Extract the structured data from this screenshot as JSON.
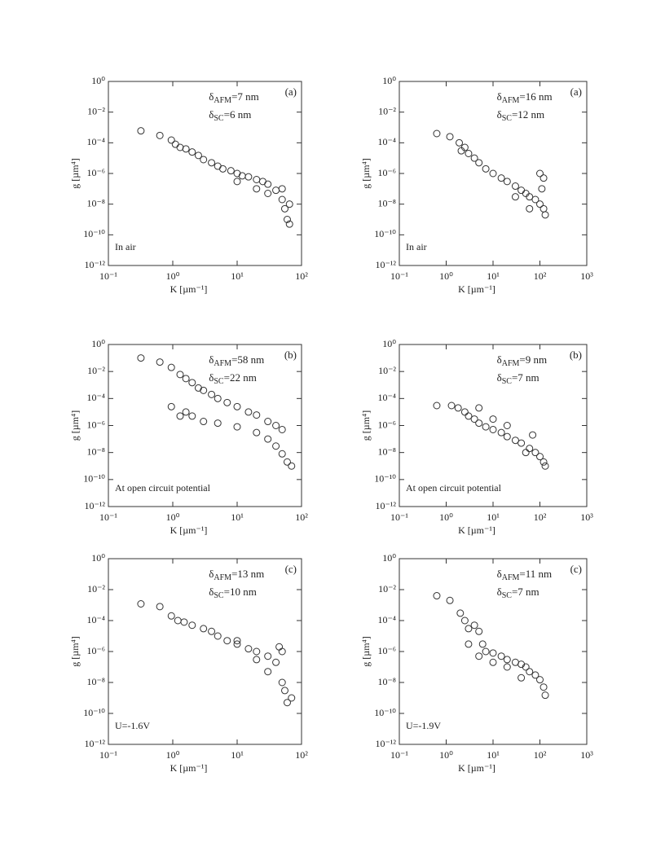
{
  "chart_data": [
    {
      "type": "scatter",
      "xscale": "log",
      "yscale": "log",
      "color": "#333333",
      "xlim": [
        0.1,
        100
      ],
      "ylim": [
        1e-12,
        1
      ],
      "xticks": [
        {
          "value": 0.1,
          "label": "10⁻¹"
        },
        {
          "value": 1,
          "label": "10⁰"
        },
        {
          "value": 10,
          "label": "10¹"
        },
        {
          "value": 100,
          "label": "10²"
        }
      ],
      "yticks": [
        {
          "value": 1,
          "label": "10⁰"
        },
        {
          "value": 0.01,
          "label": "10⁻²"
        },
        {
          "value": 0.0001,
          "label": "10⁻⁴"
        },
        {
          "value": 1e-06,
          "label": "10⁻⁶"
        },
        {
          "value": 1e-08,
          "label": "10⁻⁸"
        },
        {
          "value": 1e-10,
          "label": "10⁻¹⁰"
        },
        {
          "value": 1e-12,
          "label": "10⁻¹²"
        }
      ],
      "x_label": "K [µm⁻¹]",
      "y_label": "g [µm⁴]",
      "panel": "(a)",
      "note": "In air",
      "annotations": [
        {
          "base": "δ",
          "sub": "AFM",
          "rest": "=7 nm"
        },
        {
          "base": "δ",
          "sub": "SC",
          "rest": "=6 nm"
        }
      ],
      "x": [
        0.32,
        0.63,
        0.95,
        1.1,
        1.3,
        1.6,
        2,
        2.5,
        3,
        4,
        5,
        6,
        8,
        10,
        12,
        15,
        20,
        25,
        30,
        40,
        50,
        55,
        60,
        65,
        10,
        20,
        30,
        50,
        65
      ],
      "values": [
        0.0006,
        0.0003,
        0.00015,
        8e-05,
        5e-05,
        4e-05,
        2.5e-05,
        1.5e-05,
        8e-06,
        5e-06,
        3e-06,
        2e-06,
        1.5e-06,
        1e-06,
        7e-07,
        6e-07,
        4e-07,
        3e-07,
        2e-07,
        8e-08,
        2e-08,
        5e-09,
        1e-09,
        5e-10,
        3e-07,
        1e-07,
        5e-08,
        1e-07,
        1e-08
      ]
    },
    {
      "type": "scatter",
      "xscale": "log",
      "yscale": "log",
      "color": "#333333",
      "xlim": [
        0.1,
        1000
      ],
      "ylim": [
        1e-12,
        1
      ],
      "xticks": [
        {
          "value": 0.1,
          "label": "10⁻¹"
        },
        {
          "value": 1,
          "label": "10⁰"
        },
        {
          "value": 10,
          "label": "10¹"
        },
        {
          "value": 100,
          "label": "10²"
        },
        {
          "value": 1000,
          "label": "10³"
        }
      ],
      "yticks": [
        {
          "value": 1,
          "label": "10⁰"
        },
        {
          "value": 0.01,
          "label": "10⁻²"
        },
        {
          "value": 0.0001,
          "label": "10⁻⁴"
        },
        {
          "value": 1e-06,
          "label": "10⁻⁶"
        },
        {
          "value": 1e-08,
          "label": "10⁻⁸"
        },
        {
          "value": 1e-10,
          "label": "10⁻¹⁰"
        },
        {
          "value": 1e-12,
          "label": "10⁻¹²"
        }
      ],
      "x_label": "K [µm⁻¹]",
      "y_label": "g [µm⁴]",
      "panel": "(a)",
      "note": "In air",
      "annotations": [
        {
          "base": "δ",
          "sub": "AFM",
          "rest": "=16 nm"
        },
        {
          "base": "δ",
          "sub": "SC",
          "rest": "=12 nm"
        }
      ],
      "x": [
        0.63,
        1.2,
        1.9,
        2.1,
        2.5,
        3,
        4,
        5,
        7,
        10,
        15,
        20,
        30,
        40,
        50,
        60,
        80,
        100,
        120,
        130,
        100,
        120,
        30,
        60,
        110
      ],
      "values": [
        0.0004,
        0.00025,
        0.0001,
        3e-05,
        5e-05,
        2e-05,
        1e-05,
        5e-06,
        2e-06,
        1e-06,
        5e-07,
        3e-07,
        1.5e-07,
        8e-08,
        5e-08,
        3e-08,
        2e-08,
        1e-08,
        5e-09,
        2e-09,
        1e-06,
        5e-07,
        3e-08,
        5e-09,
        1e-07
      ]
    },
    {
      "type": "scatter",
      "xscale": "log",
      "yscale": "log",
      "color": "#333333",
      "xlim": [
        0.1,
        100
      ],
      "ylim": [
        1e-12,
        1
      ],
      "xticks": [
        {
          "value": 0.1,
          "label": "10⁻¹"
        },
        {
          "value": 1,
          "label": "10⁰"
        },
        {
          "value": 10,
          "label": "10¹"
        },
        {
          "value": 100,
          "label": "10²"
        }
      ],
      "yticks": [
        {
          "value": 1,
          "label": "10⁰"
        },
        {
          "value": 0.01,
          "label": "10⁻²"
        },
        {
          "value": 0.0001,
          "label": "10⁻⁴"
        },
        {
          "value": 1e-06,
          "label": "10⁻⁶"
        },
        {
          "value": 1e-08,
          "label": "10⁻⁸"
        },
        {
          "value": 1e-10,
          "label": "10⁻¹⁰"
        },
        {
          "value": 1e-12,
          "label": "10⁻¹²"
        }
      ],
      "x_label": "K [µm⁻¹]",
      "y_label": "g [µm⁴]",
      "panel": "(b)",
      "note": "At open circuit potential",
      "annotations": [
        {
          "base": "δ",
          "sub": "AFM",
          "rest": "=58 nm"
        },
        {
          "base": "δ",
          "sub": "SC",
          "rest": "=22 nm"
        }
      ],
      "x": [
        0.32,
        0.63,
        0.95,
        1.3,
        1.6,
        2,
        2.5,
        3,
        4,
        5,
        7,
        10,
        15,
        20,
        30,
        40,
        50,
        0.95,
        1.3,
        1.6,
        2,
        3,
        5,
        10,
        20,
        30,
        40,
        50,
        60,
        70
      ],
      "values": [
        0.1,
        0.05,
        0.02,
        0.006,
        0.003,
        0.0015,
        0.0006,
        0.0004,
        0.0002,
        0.0001,
        5e-05,
        2.5e-05,
        1e-05,
        6e-06,
        2e-06,
        1e-06,
        5e-07,
        2.5e-05,
        5e-06,
        1e-05,
        5e-06,
        2e-06,
        1.5e-06,
        8e-07,
        3e-07,
        1e-07,
        3e-08,
        8e-09,
        2e-09,
        1e-09
      ]
    },
    {
      "type": "scatter",
      "xscale": "log",
      "yscale": "log",
      "color": "#333333",
      "xlim": [
        0.1,
        1000
      ],
      "ylim": [
        1e-12,
        1
      ],
      "xticks": [
        {
          "value": 0.1,
          "label": "10⁻¹"
        },
        {
          "value": 1,
          "label": "10⁰"
        },
        {
          "value": 10,
          "label": "10¹"
        },
        {
          "value": 100,
          "label": "10²"
        },
        {
          "value": 1000,
          "label": "10³"
        }
      ],
      "yticks": [
        {
          "value": 1,
          "label": "10⁰"
        },
        {
          "value": 0.01,
          "label": "10⁻²"
        },
        {
          "value": 0.0001,
          "label": "10⁻⁴"
        },
        {
          "value": 1e-06,
          "label": "10⁻⁶"
        },
        {
          "value": 1e-08,
          "label": "10⁻⁸"
        },
        {
          "value": 1e-10,
          "label": "10⁻¹⁰"
        },
        {
          "value": 1e-12,
          "label": "10⁻¹²"
        }
      ],
      "x_label": "K [µm⁻¹]",
      "y_label": "g [µm⁴]",
      "panel": "(b)",
      "note": "At open circuit potential",
      "annotations": [
        {
          "base": "δ",
          "sub": "AFM",
          "rest": "=9 nm"
        },
        {
          "base": "δ",
          "sub": "SC",
          "rest": "=7 nm"
        }
      ],
      "x": [
        0.63,
        1.3,
        1.8,
        2.5,
        3,
        4,
        5,
        7,
        10,
        15,
        20,
        30,
        40,
        60,
        80,
        100,
        120,
        130,
        5,
        10,
        20,
        50,
        70
      ],
      "values": [
        3e-05,
        3e-05,
        2e-05,
        1e-05,
        5e-06,
        3e-06,
        1.5e-06,
        8e-07,
        5e-07,
        3e-07,
        1.5e-07,
        8e-08,
        5e-08,
        2e-08,
        1e-08,
        5e-09,
        2e-09,
        1e-09,
        2e-05,
        3e-06,
        1e-06,
        1e-08,
        2e-07
      ]
    },
    {
      "type": "scatter",
      "xscale": "log",
      "yscale": "log",
      "color": "#333333",
      "xlim": [
        0.1,
        100
      ],
      "ylim": [
        1e-12,
        1
      ],
      "xticks": [
        {
          "value": 0.1,
          "label": "10⁻¹"
        },
        {
          "value": 1,
          "label": "10⁰"
        },
        {
          "value": 10,
          "label": "10¹"
        },
        {
          "value": 100,
          "label": "10²"
        }
      ],
      "yticks": [
        {
          "value": 1,
          "label": "10⁰"
        },
        {
          "value": 0.01,
          "label": "10⁻²"
        },
        {
          "value": 0.0001,
          "label": "10⁻⁴"
        },
        {
          "value": 1e-06,
          "label": "10⁻⁶"
        },
        {
          "value": 1e-08,
          "label": "10⁻⁸"
        },
        {
          "value": 1e-10,
          "label": "10⁻¹⁰"
        },
        {
          "value": 1e-12,
          "label": "10⁻¹²"
        }
      ],
      "x_label": "K [µm⁻¹]",
      "y_label": "g [µm⁴]",
      "panel": "(c)",
      "note": "U=-1.6V",
      "annotations": [
        {
          "base": "δ",
          "sub": "AFM",
          "rest": "=13 nm"
        },
        {
          "base": "δ",
          "sub": "SC",
          "rest": "=10 nm"
        }
      ],
      "x": [
        0.32,
        0.63,
        0.95,
        1.2,
        1.5,
        2,
        3,
        4,
        5,
        7,
        10,
        15,
        20,
        30,
        40,
        50,
        50,
        55,
        60,
        70,
        30,
        20,
        10,
        45
      ],
      "values": [
        0.0012,
        0.0008,
        0.0002,
        0.0001,
        8e-05,
        5e-05,
        3e-05,
        2e-05,
        1e-05,
        5e-06,
        3e-06,
        1.5e-06,
        1e-06,
        5e-07,
        2e-07,
        1e-06,
        1e-08,
        3e-09,
        5e-10,
        1e-09,
        5e-08,
        3e-07,
        5e-06,
        2e-06
      ]
    },
    {
      "type": "scatter",
      "xscale": "log",
      "yscale": "log",
      "color": "#333333",
      "xlim": [
        0.1,
        1000
      ],
      "ylim": [
        1e-12,
        1
      ],
      "xticks": [
        {
          "value": 0.1,
          "label": "10⁻¹"
        },
        {
          "value": 1,
          "label": "10⁰"
        },
        {
          "value": 10,
          "label": "10¹"
        },
        {
          "value": 100,
          "label": "10²"
        },
        {
          "value": 1000,
          "label": "10³"
        }
      ],
      "yticks": [
        {
          "value": 1,
          "label": "10⁰"
        },
        {
          "value": 0.01,
          "label": "10⁻²"
        },
        {
          "value": 0.0001,
          "label": "10⁻⁴"
        },
        {
          "value": 1e-06,
          "label": "10⁻⁶"
        },
        {
          "value": 1e-08,
          "label": "10⁻⁸"
        },
        {
          "value": 1e-10,
          "label": "10⁻¹⁰"
        },
        {
          "value": 1e-12,
          "label": "10⁻¹²"
        }
      ],
      "x_label": "K [µm⁻¹]",
      "y_label": "g [µm⁴]",
      "panel": "(c)",
      "note": "U=-1.9V",
      "annotations": [
        {
          "base": "δ",
          "sub": "AFM",
          "rest": "=11 nm"
        },
        {
          "base": "δ",
          "sub": "SC",
          "rest": "=7 nm"
        }
      ],
      "x": [
        0.63,
        1.2,
        2,
        2.5,
        3,
        4,
        5,
        6,
        7,
        10,
        15,
        20,
        30,
        40,
        50,
        60,
        80,
        100,
        120,
        130,
        3,
        5,
        10,
        20,
        40
      ],
      "values": [
        0.004,
        0.002,
        0.0003,
        0.0001,
        3e-05,
        5e-05,
        2e-05,
        3e-06,
        1e-06,
        8e-07,
        5e-07,
        3e-07,
        2e-07,
        1.5e-07,
        1e-07,
        5e-08,
        3e-08,
        1.5e-08,
        5e-09,
        1.5e-09,
        3e-06,
        5e-07,
        2e-07,
        1e-07,
        2e-08
      ]
    }
  ]
}
